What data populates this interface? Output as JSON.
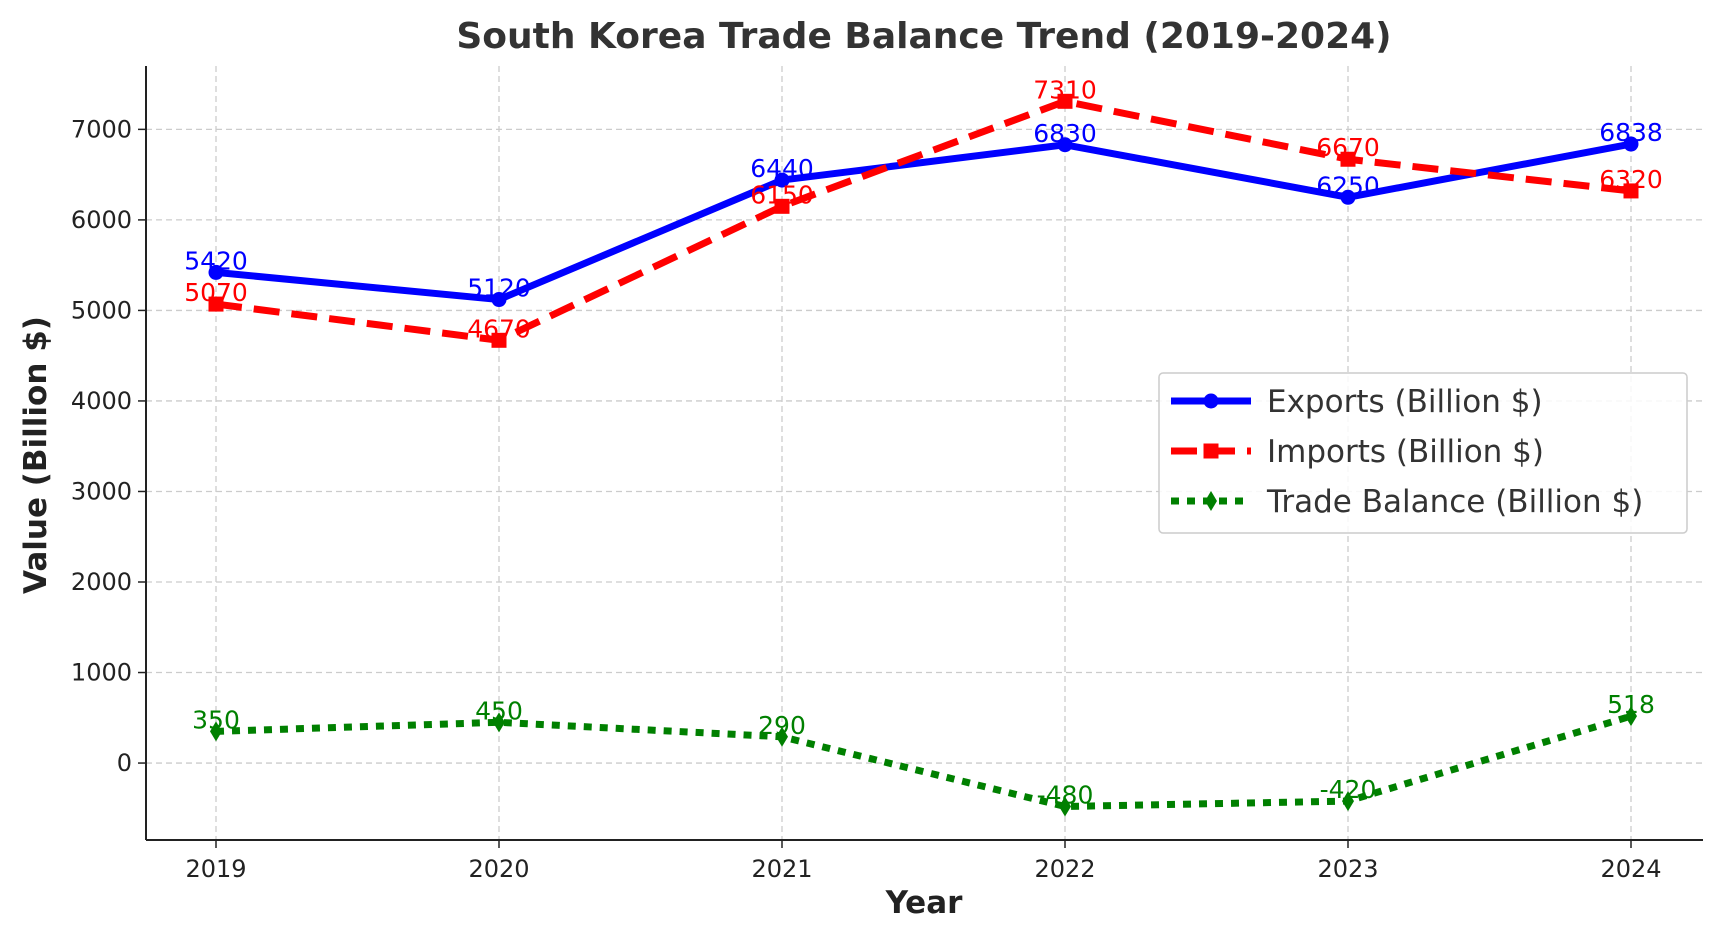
{
  "chart_data": {
    "type": "line",
    "title": "South Korea Trade Balance Trend (2019-2024)",
    "xlabel": "Year",
    "ylabel": "Value (Billion $)",
    "x": [
      "2019",
      "2020",
      "2021",
      "2022",
      "2023",
      "2024"
    ],
    "ylim": [
      -850,
      7700
    ],
    "yticks": [
      0,
      1000,
      2000,
      3000,
      4000,
      5000,
      6000,
      7000
    ],
    "grid": true,
    "legend_position": "center-right",
    "series": [
      {
        "name": "Exports (Billion $)",
        "values": [
          5420,
          5120,
          6440,
          6830,
          6250,
          6838
        ],
        "color": "#0000ff",
        "style": "solid",
        "marker": "circle"
      },
      {
        "name": "Imports (Billion $)",
        "values": [
          5070,
          4670,
          6150,
          7310,
          6670,
          6320
        ],
        "color": "#ff0000",
        "style": "dashed",
        "marker": "square"
      },
      {
        "name": "Trade Balance (Billion $)",
        "values": [
          350,
          450,
          290,
          -480,
          -420,
          518
        ],
        "color": "#008000",
        "style": "dotted",
        "marker": "diamond"
      }
    ]
  }
}
